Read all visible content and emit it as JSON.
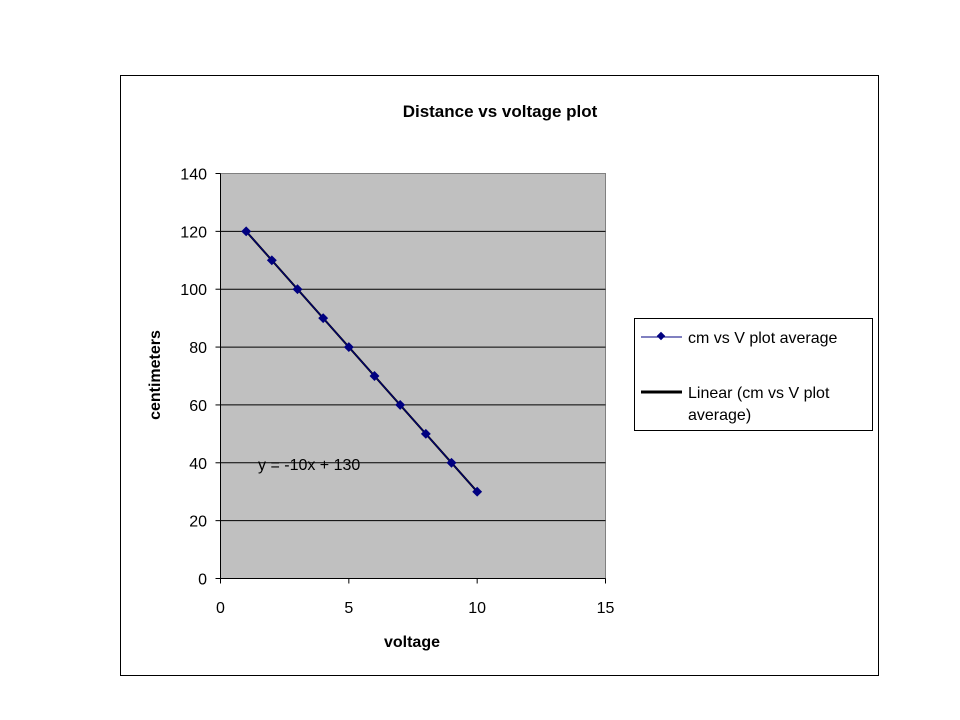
{
  "chart_data": {
    "type": "line",
    "title": "Distance vs voltage plot",
    "xlabel": "voltage",
    "ylabel": "centimeters",
    "xlim": [
      0,
      15
    ],
    "ylim": [
      0,
      140
    ],
    "xticks": [
      "0",
      "5",
      "10",
      "15"
    ],
    "yticks": [
      "0",
      "20",
      "40",
      "60",
      "80",
      "100",
      "120",
      "140"
    ],
    "grid": "horizontal",
    "legend_position": "right",
    "series": [
      {
        "name": "cm vs V plot average",
        "color": "#000080",
        "marker": "diamond",
        "x": [
          1,
          2,
          3,
          4,
          5,
          6,
          7,
          8,
          9,
          10
        ],
        "y": [
          120,
          110,
          100,
          90,
          80,
          70,
          60,
          50,
          40,
          30
        ]
      }
    ],
    "trendline": {
      "name": "Linear (cm vs V plot average)",
      "name_line1": "Linear (cm vs V plot",
      "name_line2": "average)",
      "slope": -10,
      "intercept": 130,
      "color": "#000000",
      "equation": "y = -10x + 130"
    },
    "plot_bg": "#c0c0c0"
  }
}
